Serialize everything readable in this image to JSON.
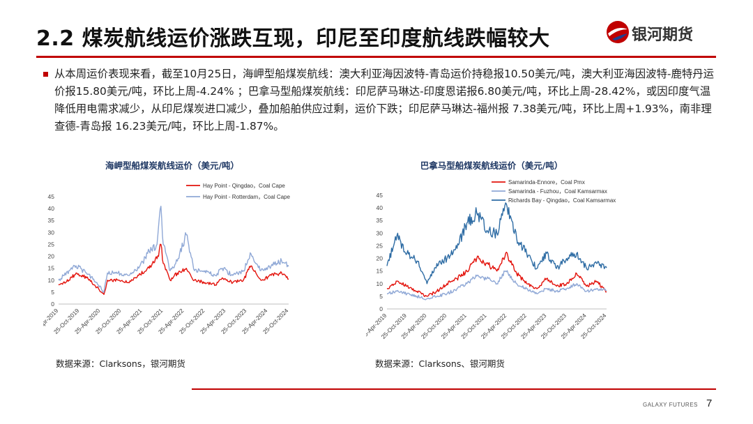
{
  "header": {
    "title": "2.2 煤炭航线运价涨跌互现，印尼至印度航线跌幅较大",
    "logo_text": "银河期货"
  },
  "summary": {
    "text": "从本周运价表现来看，截至10月25日，海岬型船煤炭航线：澳大利亚海因波特-青岛运价持稳报10.50美元/吨，澳大利亚海因波特-鹿特丹运价报15.80美元/吨，环比上周-4.24% ；巴拿马型船煤炭航线：印尼萨马琳达-印度恩诺报6.80美元/吨，环比上周-28.42%，或因印度气温降低用电需求减少，从印尼煤炭进口减少，叠加船舶供应过剩，运价下跌；印尼萨马琳达-福州报 7.38美元/吨，环比上周+1.93%，南非理查德-青岛报 16.23美元/吨，环比上周-1.87%。"
  },
  "footer": {
    "brand": "GALAXY FUTURES",
    "page_number": "7"
  },
  "colors": {
    "accent": "#c00000",
    "series_red": "#e3120b",
    "series_lightblue": "#8fa8d6",
    "series_blue": "#2e6ca4"
  },
  "chart_data": [
    {
      "type": "line",
      "title": "海岬型船煤炭航线运价（美元/吨）",
      "source": "数据来源：Clarksons，银河期货",
      "legend_position": "top-right",
      "xlabel": "",
      "ylabel": "",
      "ylim": [
        0,
        45
      ],
      "yticks": [
        0,
        5,
        10,
        15,
        20,
        25,
        30,
        35,
        40,
        45
      ],
      "xlim": [
        "2019-04-25",
        "2024-10-25"
      ],
      "x_tick_labels": [
        "25-Apr-2019",
        "25-Oct-2019",
        "25-Apr-2020",
        "25-Oct-2020",
        "25-Apr-2021",
        "25-Oct-2021",
        "25-Apr-2022",
        "25-Oct-2022",
        "25-Apr-2023",
        "25-Oct-2023",
        "25-Apr-2024",
        "25-Oct-2024"
      ],
      "series": [
        {
          "name": "Hay Point - Qingdao，Coal Cape",
          "color": "#e3120b",
          "x": [
            "2019-04-25",
            "2019-07-25",
            "2019-09-25",
            "2019-12-25",
            "2020-03-25",
            "2020-05-25",
            "2020-06-25",
            "2020-09-25",
            "2020-12-25",
            "2021-03-25",
            "2021-06-25",
            "2021-09-01",
            "2021-10-05",
            "2021-10-25",
            "2021-12-25",
            "2022-02-25",
            "2022-05-15",
            "2022-07-25",
            "2022-10-25",
            "2023-01-25",
            "2023-03-25",
            "2023-06-25",
            "2023-09-25",
            "2023-12-01",
            "2024-02-25",
            "2024-05-25",
            "2024-08-25",
            "2024-10-25"
          ],
          "values": [
            8,
            10,
            13,
            11,
            7,
            4,
            10,
            10,
            9,
            12,
            15,
            19,
            25,
            17,
            10,
            13,
            15,
            10,
            9,
            8,
            11,
            9,
            10,
            16,
            10,
            12,
            13,
            10.5
          ]
        },
        {
          "name": "Hay Point - Rotterdam，Coal Cape",
          "color": "#8fa8d6",
          "x": [
            "2019-04-25",
            "2019-07-25",
            "2019-09-25",
            "2019-12-25",
            "2020-03-25",
            "2020-05-25",
            "2020-06-25",
            "2020-09-25",
            "2020-12-25",
            "2021-03-25",
            "2021-06-25",
            "2021-09-01",
            "2021-10-05",
            "2021-10-25",
            "2021-12-25",
            "2022-02-25",
            "2022-05-15",
            "2022-07-25",
            "2022-10-25",
            "2023-01-25",
            "2023-03-25",
            "2023-06-25",
            "2023-09-25",
            "2023-12-01",
            "2024-02-25",
            "2024-05-25",
            "2024-08-25",
            "2024-10-25"
          ],
          "values": [
            10,
            14,
            16,
            13,
            9,
            5,
            13,
            13,
            12,
            15,
            22,
            25,
            41,
            25,
            14,
            18,
            29,
            14,
            14,
            12,
            15,
            12,
            14,
            21,
            14,
            16,
            18,
            15.8
          ]
        }
      ]
    },
    {
      "type": "line",
      "title": "巴拿马型船煤炭航线运价（美元/吨）",
      "source": "数据来源：Clarksons、银河期货",
      "legend_position": "top",
      "xlabel": "",
      "ylabel": "",
      "ylim": [
        0,
        45
      ],
      "yticks": [
        0,
        5,
        10,
        15,
        20,
        25,
        30,
        35,
        40,
        45
      ],
      "xlim": [
        "2019-04-25",
        "2024-10-25"
      ],
      "x_tick_labels": [
        "25-Apr-2019",
        "25-Oct-2019",
        "25-Apr-2020",
        "25-Oct-2020",
        "25-Apr-2021",
        "25-Oct-2021",
        "25-Apr-2022",
        "25-Oct-2022",
        "25-Apr-2023",
        "25-Oct-2023",
        "25-Apr-2024",
        "25-Oct-2024"
      ],
      "series": [
        {
          "name": "Samarinda-Ennore，Coal Pmx",
          "color": "#e3120b",
          "x": [
            "2019-04-25",
            "2019-07-25",
            "2019-10-25",
            "2020-01-25",
            "2020-04-25",
            "2020-07-25",
            "2020-10-25",
            "2021-01-25",
            "2021-04-25",
            "2021-07-25",
            "2021-10-25",
            "2022-01-25",
            "2022-04-15",
            "2022-07-25",
            "2022-10-25",
            "2023-01-25",
            "2023-04-25",
            "2023-07-25",
            "2023-10-25",
            "2024-01-25",
            "2024-04-25",
            "2024-07-25",
            "2024-10-25"
          ],
          "values": [
            8,
            11,
            9,
            7,
            5,
            7,
            10,
            12,
            15,
            20,
            18,
            15,
            22,
            14,
            10,
            8,
            12,
            9,
            10,
            14,
            9,
            11,
            6.8
          ]
        },
        {
          "name": "Samarinda - Fuzhou，Coal Kamsarmax",
          "color": "#8fa8d6",
          "x": [
            "2019-04-25",
            "2019-07-25",
            "2019-10-25",
            "2020-01-25",
            "2020-04-25",
            "2020-07-25",
            "2020-10-25",
            "2021-01-25",
            "2021-04-25",
            "2021-07-25",
            "2021-10-25",
            "2022-01-25",
            "2022-04-15",
            "2022-07-25",
            "2022-10-25",
            "2023-01-25",
            "2023-04-25",
            "2023-07-25",
            "2023-10-25",
            "2024-01-25",
            "2024-04-25",
            "2024-07-25",
            "2024-10-25"
          ],
          "values": [
            6,
            7,
            6,
            5,
            4,
            5,
            6,
            8,
            10,
            13,
            12,
            10,
            15,
            10,
            8,
            6,
            8,
            7,
            8,
            10,
            7,
            8,
            7.38
          ]
        },
        {
          "name": "Richards Bay - Qingdao，Coal Kamsarmax",
          "color": "#2e6ca4",
          "x": [
            "2019-04-25",
            "2019-07-25",
            "2019-10-25",
            "2020-01-25",
            "2020-04-25",
            "2020-07-25",
            "2020-10-25",
            "2021-01-25",
            "2021-04-25",
            "2021-07-25",
            "2021-10-25",
            "2022-01-25",
            "2022-04-15",
            "2022-07-25",
            "2022-10-25",
            "2023-01-25",
            "2023-04-25",
            "2023-07-25",
            "2023-10-25",
            "2024-01-25",
            "2024-04-25",
            "2024-07-25",
            "2024-10-25"
          ],
          "values": [
            17,
            29,
            22,
            19,
            10,
            18,
            20,
            24,
            34,
            38,
            31,
            30,
            42,
            28,
            22,
            16,
            22,
            16,
            20,
            22,
            16,
            18,
            16.23
          ]
        }
      ]
    }
  ]
}
